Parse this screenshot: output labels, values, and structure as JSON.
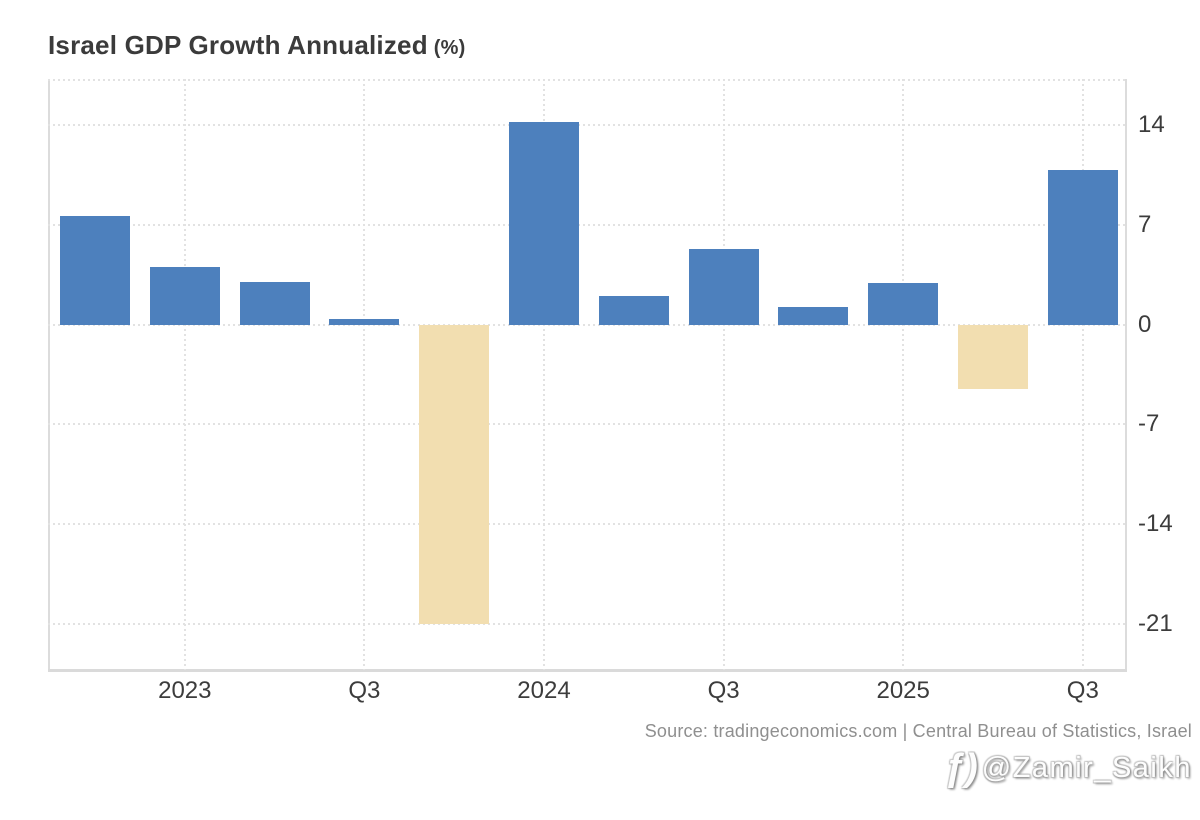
{
  "header": {
    "title": "Israel GDP Growth Annualized",
    "title_unit": "(%)"
  },
  "chart_data": {
    "type": "bar",
    "title": "Israel GDP Growth Annualized (%)",
    "values": [
      7.6,
      4.0,
      3.0,
      0.4,
      -21.0,
      14.2,
      2.0,
      5.3,
      1.2,
      2.9,
      -4.5,
      10.8
    ],
    "x_tick_labels": [
      "2023",
      "Q3",
      "2024",
      "Q3",
      "2025",
      "Q3"
    ],
    "x_tick_bar_indices": [
      1,
      3,
      5,
      7,
      9,
      11
    ],
    "y_ticks": [
      14,
      7,
      0,
      -7,
      -14,
      -21
    ],
    "ylim": [
      -24.2,
      17.2
    ],
    "grid": true,
    "legend": "none",
    "colors": {
      "positive_bar": "#4d80bd",
      "negative_bar": "#f2deb0",
      "gridline": "#e2e2e2",
      "axis_border": "#dcdcdc",
      "tick_text": "#3c3c3c"
    }
  },
  "footer": {
    "source": "Source: tradingeconomics.com | Central Bureau of Statistics, Israel"
  },
  "watermark": {
    "icon": "bird-curl-icon",
    "icon_glyph": "ƒ)",
    "handle": "@Zamir_Saikh"
  }
}
